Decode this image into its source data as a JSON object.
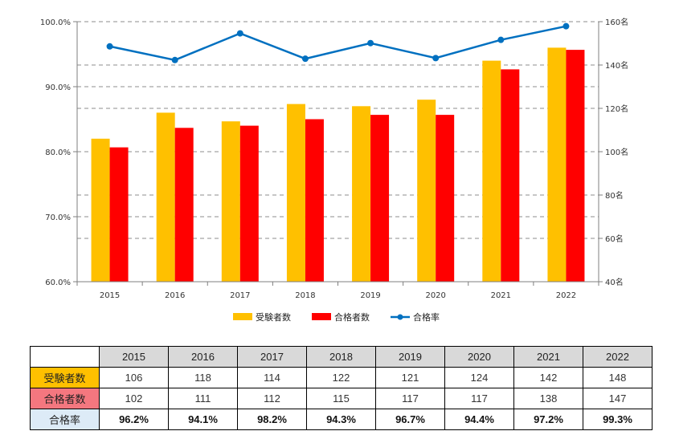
{
  "chart_data": {
    "type": "bar+line",
    "categories": [
      "2015",
      "2016",
      "2017",
      "2018",
      "2019",
      "2020",
      "2021",
      "2022"
    ],
    "series": [
      {
        "name": "受験者数",
        "type": "bar",
        "axis": "right",
        "color": "#FFC000",
        "values": [
          106,
          118,
          114,
          122,
          121,
          124,
          142,
          148
        ]
      },
      {
        "name": "合格者数",
        "type": "bar",
        "axis": "right",
        "color": "#FF0000",
        "values": [
          102,
          111,
          112,
          115,
          117,
          117,
          138,
          147
        ]
      },
      {
        "name": "合格率",
        "type": "line",
        "axis": "left",
        "color": "#0070C0",
        "values": [
          96.2,
          94.1,
          98.2,
          94.3,
          96.7,
          94.4,
          97.2,
          99.3
        ]
      }
    ],
    "y_left": {
      "ylim": [
        60,
        100
      ],
      "ticks": [
        "60.0%",
        "70.0%",
        "80.0%",
        "90.0%",
        "100.0%"
      ],
      "tick_values": [
        60,
        70,
        80,
        90,
        100
      ]
    },
    "y_right": {
      "ylim": [
        40,
        160
      ],
      "ticks": [
        "40名",
        "60名",
        "80名",
        "100名",
        "120名",
        "140名",
        "160名"
      ],
      "tick_values": [
        40,
        60,
        80,
        100,
        120,
        140,
        160
      ]
    },
    "grid": "dashed horizontal",
    "legend_position": "bottom"
  },
  "table": {
    "years": [
      "2015",
      "2016",
      "2017",
      "2018",
      "2019",
      "2020",
      "2021",
      "2022"
    ],
    "rows": [
      {
        "label": "受験者数",
        "bg": "#FFC000",
        "values": [
          "106",
          "118",
          "114",
          "122",
          "121",
          "124",
          "142",
          "148"
        ],
        "kind": "num"
      },
      {
        "label": "合格者数",
        "bg": "#F4777F",
        "values": [
          "102",
          "111",
          "112",
          "115",
          "117",
          "117",
          "138",
          "147"
        ],
        "kind": "num"
      },
      {
        "label": "合格率",
        "bg": "#DDEBF7",
        "values": [
          "96.2%",
          "94.1%",
          "98.2%",
          "94.3%",
          "96.7%",
          "94.4%",
          "97.2%",
          "99.3%"
        ],
        "kind": "rate"
      }
    ]
  }
}
